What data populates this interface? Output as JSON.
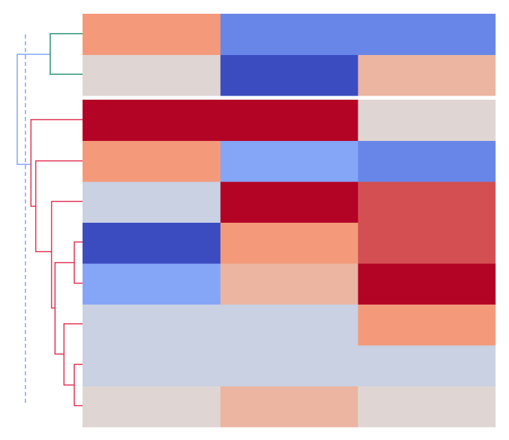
{
  "chart_data": {
    "type": "heatmap",
    "colormap": "coolwarm",
    "clim": [
      -1,
      1
    ],
    "values": [
      [
        0.5,
        -0.65,
        -0.65
      ],
      [
        0.05,
        -1,
        0.3
      ],
      [
        1,
        1,
        0.05
      ],
      [
        0.5,
        -0.45,
        -0.65
      ],
      [
        -0.1,
        1,
        0.75
      ],
      [
        -1,
        0.5,
        0.75
      ],
      [
        -0.45,
        0.3,
        1
      ],
      [
        -0.1,
        -0.1,
        0.5
      ],
      [
        -0.1,
        -0.1,
        -0.1
      ],
      [
        0.05,
        0.3,
        0.05
      ]
    ]
  }
}
